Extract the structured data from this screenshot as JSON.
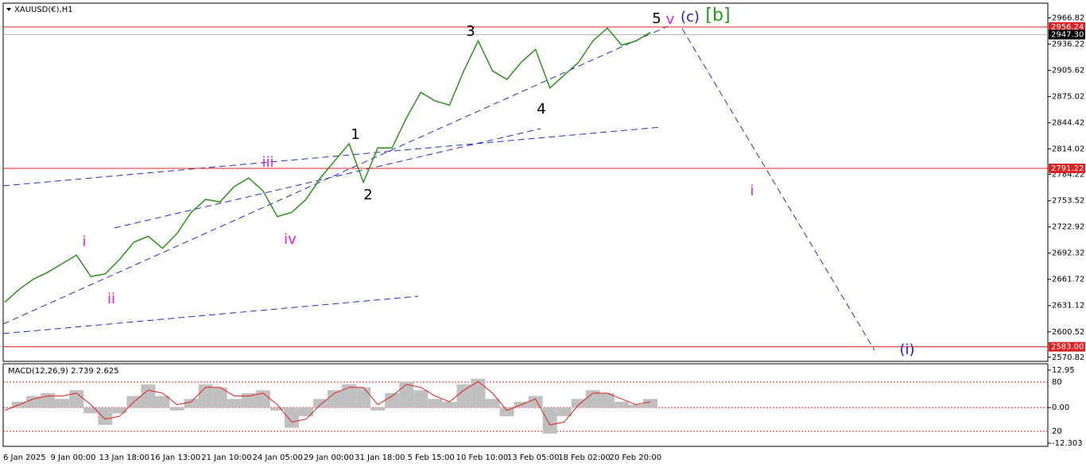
{
  "chart_data": {
    "type": "line",
    "title": "XAUUSD(€),H1",
    "ylim": [
      2566,
      2984
    ],
    "yticks": [
      2966.82,
      2936.22,
      2905.62,
      2875.02,
      2844.42,
      2814.02,
      2784.22,
      2753.52,
      2722.92,
      2692.32,
      2661.72,
      2631.12,
      2600.52,
      2570.82
    ],
    "levels": [
      2956.24,
      2791.22,
      {
        "value": 2583,
        "label": "2583.00"
      }
    ],
    "current_price": {
      "value": 2947.3,
      "label": "2947.30"
    },
    "xticks": [
      "6 Jan 2025",
      "9 Jan 00:00",
      "13 Jan 18:00",
      "16 Jan 13:00",
      "21 Jan 10:00",
      "24 Jan 05:00",
      "29 Jan 00:00",
      "31 Jan 18:00",
      "5 Feb 15:00",
      "10 Feb 10:00",
      "13 Feb 05:00",
      "18 Feb 02:00",
      "20 Feb 20:00"
    ],
    "series": [
      {
        "color": "#2f8f1f",
        "values": [
          2635,
          2650,
          2662,
          2670,
          2680,
          2690,
          2665,
          2668,
          2685,
          2705,
          2712,
          2698,
          2715,
          2740,
          2755,
          2752,
          2770,
          2780,
          2765,
          2735,
          2740,
          2755,
          2780,
          2800,
          2820,
          2775,
          2815,
          2815,
          2850,
          2880,
          2870,
          2865,
          2905,
          2940,
          2905,
          2895,
          2915,
          2930,
          2885,
          2900,
          2915,
          2940,
          2955,
          2935,
          2940,
          2950
        ]
      }
    ],
    "annotations": [
      {
        "text": "5",
        "color": "#000000"
      },
      {
        "text": "v",
        "color": "#e020e0"
      },
      {
        "text": "(c)",
        "color": "#2020c0"
      },
      {
        "text": "[b]",
        "color": "#1f9a1f"
      },
      {
        "text": "3",
        "color": "#000000"
      },
      {
        "text": "1",
        "color": "#000000"
      },
      {
        "text": "2",
        "color": "#000000"
      },
      {
        "text": "4",
        "color": "#000000"
      },
      {
        "text": "iii",
        "color": "#e020e0"
      },
      {
        "text": "iv",
        "color": "#e020e0"
      },
      {
        "text": "i",
        "color": "#e020e0"
      },
      {
        "text": "ii",
        "color": "#e020e0"
      },
      {
        "text": "i",
        "color": "#e020e0"
      },
      {
        "text": "(i)",
        "color": "#2020c0"
      }
    ],
    "macd": {
      "title": "MACD(12,26,9) 2.739 2.625",
      "ylim": [
        -13.4,
        14.6
      ],
      "yticks": [
        12.95,
        {
          "value": 0,
          "label": "0.00"
        },
        -12.303
      ],
      "level_labels": [
        "80",
        "20"
      ],
      "histogram": [
        0,
        2,
        4,
        5,
        3,
        6,
        -2,
        -6,
        -2,
        4,
        8,
        4,
        -1,
        3,
        8,
        7,
        3,
        5,
        6,
        -1,
        -7,
        -3,
        3,
        6,
        8,
        7,
        -1,
        5,
        9,
        6,
        3,
        2,
        8,
        10,
        3,
        -3,
        2,
        4,
        -9,
        -3,
        3,
        6,
        5,
        2,
        1,
        3
      ],
      "signal": [
        -1,
        1,
        3,
        4,
        4,
        5,
        1,
        -4,
        -3,
        2,
        6,
        5,
        1,
        2,
        7,
        7,
        4,
        4,
        5,
        1,
        -5,
        -4,
        1,
        5,
        7,
        7,
        1,
        4,
        8,
        7,
        4,
        2,
        6,
        9,
        5,
        -1,
        1,
        3,
        -6,
        -5,
        1,
        5,
        5,
        3,
        1,
        2
      ]
    }
  }
}
